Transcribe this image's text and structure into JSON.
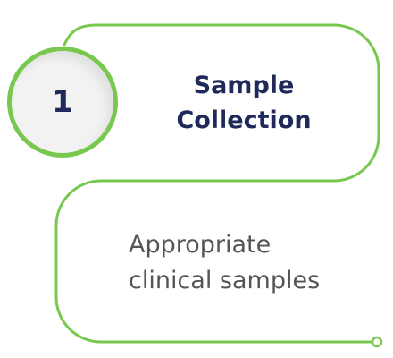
{
  "step": {
    "number": "1",
    "title": "Sample\nCollection",
    "description": "Appropriate\nclinical samples"
  },
  "colors": {
    "accent": "#78c850",
    "title": "#1f2a5a",
    "description": "#555555",
    "circle_fill": "#f2f2f2"
  }
}
